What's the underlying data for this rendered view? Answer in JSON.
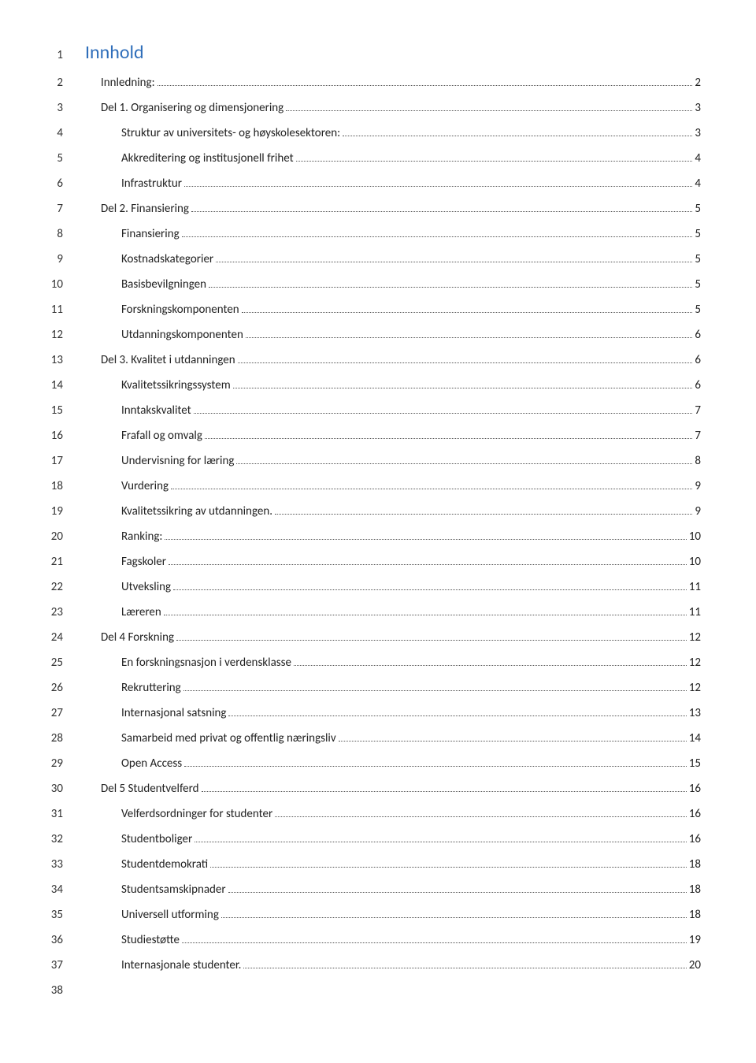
{
  "title": "Innhold",
  "toc": [
    {
      "line": 1,
      "type": "title"
    },
    {
      "line": 2,
      "indent": 1,
      "text": "Innledning:",
      "page": "2"
    },
    {
      "line": 3,
      "indent": 1,
      "text": "Del 1. Organisering og dimensjonering",
      "page": "3"
    },
    {
      "line": 4,
      "indent": 2,
      "text": "Struktur av universitets- og høyskolesektoren:",
      "page": "3"
    },
    {
      "line": 5,
      "indent": 2,
      "text": "Akkreditering og institusjonell frihet",
      "page": "4"
    },
    {
      "line": 6,
      "indent": 2,
      "text": "Infrastruktur",
      "page": "4"
    },
    {
      "line": 7,
      "indent": 1,
      "text": "Del 2. Finansiering",
      "page": "5"
    },
    {
      "line": 8,
      "indent": 2,
      "text": "Finansiering",
      "page": "5"
    },
    {
      "line": 9,
      "indent": 2,
      "text": "Kostnadskategorier",
      "page": "5"
    },
    {
      "line": 10,
      "indent": 2,
      "text": "Basisbevilgningen",
      "page": "5"
    },
    {
      "line": 11,
      "indent": 2,
      "text": "Forskningskomponenten",
      "page": "5"
    },
    {
      "line": 12,
      "indent": 2,
      "text": "Utdanningskomponenten",
      "page": "6"
    },
    {
      "line": 13,
      "indent": 1,
      "text": "Del 3. Kvalitet i utdanningen",
      "page": "6"
    },
    {
      "line": 14,
      "indent": 2,
      "text": "Kvalitetssikringssystem",
      "page": "6"
    },
    {
      "line": 15,
      "indent": 2,
      "text": "Inntakskvalitet",
      "page": "7"
    },
    {
      "line": 16,
      "indent": 2,
      "text": "Frafall og omvalg",
      "page": "7"
    },
    {
      "line": 17,
      "indent": 2,
      "text": "Undervisning for læring",
      "page": "8"
    },
    {
      "line": 18,
      "indent": 2,
      "text": "Vurdering",
      "page": "9"
    },
    {
      "line": 19,
      "indent": 2,
      "text": "Kvalitetssikring av utdanningen.",
      "page": "9"
    },
    {
      "line": 20,
      "indent": 2,
      "text": "Ranking:",
      "page": "10"
    },
    {
      "line": 21,
      "indent": 2,
      "text": "Fagskoler",
      "page": "10"
    },
    {
      "line": 22,
      "indent": 2,
      "text": "Utveksling",
      "page": "11"
    },
    {
      "line": 23,
      "indent": 2,
      "text": "Læreren",
      "page": "11"
    },
    {
      "line": 24,
      "indent": 1,
      "text": "Del 4 Forskning",
      "page": "12"
    },
    {
      "line": 25,
      "indent": 2,
      "text": "En forskningsnasjon i verdensklasse",
      "page": "12"
    },
    {
      "line": 26,
      "indent": 2,
      "text": "Rekruttering",
      "page": "12"
    },
    {
      "line": 27,
      "indent": 2,
      "text": "Internasjonal satsning",
      "page": "13"
    },
    {
      "line": 28,
      "indent": 2,
      "text": "Samarbeid med privat og offentlig næringsliv",
      "page": "14"
    },
    {
      "line": 29,
      "indent": 2,
      "text": "Open Access",
      "page": "15"
    },
    {
      "line": 30,
      "indent": 1,
      "text": "Del 5 Studentvelferd",
      "page": "16"
    },
    {
      "line": 31,
      "indent": 2,
      "text": "Velferdsordninger for studenter",
      "page": "16"
    },
    {
      "line": 32,
      "indent": 2,
      "text": "Studentboliger",
      "page": "16"
    },
    {
      "line": 33,
      "indent": 2,
      "text": "Studentdemokrati",
      "page": "18"
    },
    {
      "line": 34,
      "indent": 2,
      "text": "Studentsamskipnader",
      "page": "18"
    },
    {
      "line": 35,
      "indent": 2,
      "text": "Universell utforming",
      "page": "18"
    },
    {
      "line": 36,
      "indent": 2,
      "text": "Studiestøtte",
      "page": "19"
    },
    {
      "line": 37,
      "indent": 2,
      "text": "Internasjonale studenter.",
      "page": "20"
    },
    {
      "line": 38,
      "type": "blank"
    }
  ]
}
